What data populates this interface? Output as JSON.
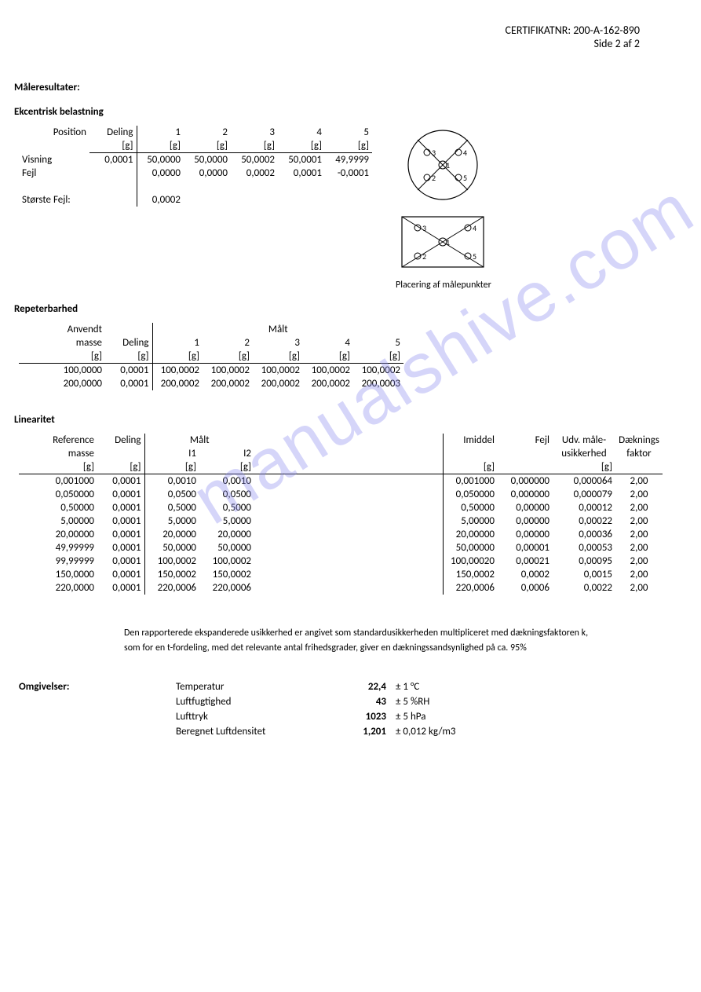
{
  "header": {
    "cert_label": "CERTIFIKATNR:",
    "cert_no": "200-A-162-890",
    "page": "Side 2 af 2"
  },
  "titles": {
    "male": "Måleresultater:",
    "ekc": "Ekcentrisk belastning",
    "rep": "Repeterbarhed",
    "lin": "Linearitet"
  },
  "ekc": {
    "hdr_position": "Position",
    "hdr_deling": "Deling",
    "unit": "[g]",
    "cols": [
      "1",
      "2",
      "3",
      "4",
      "5"
    ],
    "row_visning": "Visning",
    "row_fejl": "Fejl",
    "row_storste": "Største Fejl:",
    "deling_val": "0,0001",
    "visning": [
      "50,0000",
      "50,0000",
      "50,0002",
      "50,0001",
      "49,9999"
    ],
    "fejl": [
      "0,0000",
      "0,0000",
      "0,0002",
      "0,0001",
      "-0,0001"
    ],
    "storste_val": "0,0002",
    "diag_caption": "Placering af målepunkter"
  },
  "rep": {
    "hdr_anvendt": "Anvendt",
    "hdr_masse": "masse",
    "hdr_deling": "Deling",
    "hdr_malt": "Målt",
    "unit": "[g]",
    "cols": [
      "1",
      "2",
      "3",
      "4",
      "5"
    ],
    "rows": [
      {
        "masse": "100,0000",
        "deling": "0,0001",
        "vals": [
          "100,0002",
          "100,0002",
          "100,0002",
          "100,0002",
          "100,0002"
        ]
      },
      {
        "masse": "200,0000",
        "deling": "0,0001",
        "vals": [
          "200,0002",
          "200,0002",
          "200,0002",
          "200,0002",
          "200,0003"
        ]
      }
    ]
  },
  "lin": {
    "hdr_reference": "Reference",
    "hdr_masse": "masse",
    "hdr_deling": "Deling",
    "hdr_malt": "Målt",
    "hdr_i1": "I1",
    "hdr_i2": "I2",
    "hdr_imiddel": "Imiddel",
    "hdr_fejl": "Fejl",
    "hdr_usik1": "Udv. måle-",
    "hdr_usik2": "usikkerhed",
    "hdr_dk1": "Dæknings",
    "hdr_dk2": "faktor",
    "unit": "[g]",
    "rows": [
      {
        "ref": "0,001000",
        "del": "0,0001",
        "i1": "0,0010",
        "i2": "0,0010",
        "im": "0,001000",
        "fejl": "0,000000",
        "usik": "0,000064",
        "dk": "2,00"
      },
      {
        "ref": "0,050000",
        "del": "0,0001",
        "i1": "0,0500",
        "i2": "0,0500",
        "im": "0,050000",
        "fejl": "0,000000",
        "usik": "0,000079",
        "dk": "2,00"
      },
      {
        "ref": "0,50000",
        "del": "0,0001",
        "i1": "0,5000",
        "i2": "0,5000",
        "im": "0,50000",
        "fejl": "0,00000",
        "usik": "0,00012",
        "dk": "2,00"
      },
      {
        "ref": "5,00000",
        "del": "0,0001",
        "i1": "5,0000",
        "i2": "5,0000",
        "im": "5,00000",
        "fejl": "0,00000",
        "usik": "0,00022",
        "dk": "2,00"
      },
      {
        "ref": "20,00000",
        "del": "0,0001",
        "i1": "20,0000",
        "i2": "20,0000",
        "im": "20,00000",
        "fejl": "0,00000",
        "usik": "0,00036",
        "dk": "2,00"
      },
      {
        "ref": "49,99999",
        "del": "0,0001",
        "i1": "50,0000",
        "i2": "50,0000",
        "im": "50,00000",
        "fejl": "0,00001",
        "usik": "0,00053",
        "dk": "2,00"
      },
      {
        "ref": "99,99999",
        "del": "0,0001",
        "i1": "100,0002",
        "i2": "100,0002",
        "im": "100,00020",
        "fejl": "0,00021",
        "usik": "0,00095",
        "dk": "2,00"
      },
      {
        "ref": "150,0000",
        "del": "0,0001",
        "i1": "150,0002",
        "i2": "150,0002",
        "im": "150,0002",
        "fejl": "0,0002",
        "usik": "0,0015",
        "dk": "2,00"
      },
      {
        "ref": "220,0000",
        "del": "0,0001",
        "i1": "220,0006",
        "i2": "220,0006",
        "im": "220,0006",
        "fejl": "0,0006",
        "usik": "0,0022",
        "dk": "2,00"
      }
    ]
  },
  "note": {
    "l1": "Den rapporterede ekspanderede usikkerhed er angivet som standardusikkerheden multipliceret med dækningsfaktoren k,",
    "l2": "som for en t-fordeling, med det relevante antal frihedsgrader, giver en dækningssandsynlighed på ca. 95%"
  },
  "env": {
    "label": "Omgivelser:",
    "rows": [
      {
        "name": "Temperatur",
        "val": "22,4",
        "tol": "± 1 °C"
      },
      {
        "name": "Luftfugtighed",
        "val": "43",
        "tol": "± 5 %RH"
      },
      {
        "name": "Lufttryk",
        "val": "1023",
        "tol": "± 5 hPa"
      },
      {
        "name": "Beregnet Luftdensitet",
        "val": "1,201",
        "tol": "± 0,012 kg/m3"
      }
    ]
  },
  "watermark": "manualshive.com"
}
